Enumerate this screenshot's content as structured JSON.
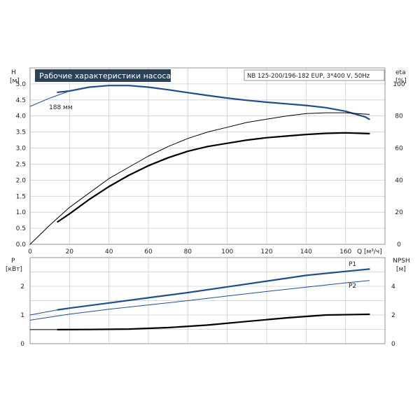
{
  "chart_data": {
    "type": "line",
    "title": "Рабочие характеристики насоса",
    "subtitle": "NB 125-200/196-182 EUP, 3*400 V, 50Hz",
    "x_label": "Q [м³/ч]",
    "x_ticks": [
      "0",
      "20",
      "40",
      "60",
      "80",
      "100",
      "120",
      "140",
      "160"
    ],
    "x_range": [
      0,
      180
    ],
    "colors": {
      "blue": "#1f4e8c",
      "black": "#000000",
      "grid": "#cfcfcf"
    },
    "top_panel": {
      "left_axis": {
        "label_line1": "H",
        "label_line2": "[м]",
        "range": [
          0,
          5.5
        ],
        "ticks": [
          "0.0",
          "0.5",
          "1.0",
          "1.5",
          "2.0",
          "2.5",
          "3.0",
          "3.5",
          "4.0",
          "4.5",
          "5.0"
        ]
      },
      "right_axis": {
        "label_line1": "eta",
        "label_line2": "[%]",
        "range": [
          0,
          110
        ],
        "ticks": [
          "0",
          "20",
          "40",
          "60",
          "80",
          "100"
        ]
      },
      "series": [
        {
          "name": "188 мм",
          "axis": "left",
          "color": "#1f4e8c",
          "width": 1,
          "dashed": false,
          "x": [
            0,
            10,
            20,
            30,
            40,
            50,
            60,
            70,
            80,
            90,
            100,
            110,
            120,
            130,
            140,
            150,
            160,
            170,
            172
          ],
          "y": [
            4.3,
            4.56,
            4.78,
            4.9,
            4.95,
            4.95,
            4.9,
            4.82,
            4.73,
            4.64,
            4.56,
            4.49,
            4.43,
            4.38,
            4.33,
            4.26,
            4.15,
            3.97,
            3.9
          ]
        },
        {
          "name": "",
          "axis": "left",
          "color": "#1f4e8c",
          "width": 2.2,
          "dashed": false,
          "x": [
            14,
            20,
            30,
            40,
            50,
            60,
            70,
            80,
            90,
            100,
            110,
            120,
            130,
            140,
            150,
            160,
            170,
            172
          ],
          "y": [
            4.74,
            4.78,
            4.9,
            4.95,
            4.95,
            4.9,
            4.82,
            4.73,
            4.64,
            4.56,
            4.49,
            4.43,
            4.38,
            4.33,
            4.26,
            4.15,
            3.97,
            3.9
          ]
        },
        {
          "name": "",
          "axis": "right",
          "color": "#000000",
          "width": 1,
          "dashed": false,
          "x": [
            0,
            10,
            20,
            30,
            40,
            50,
            60,
            70,
            80,
            90,
            100,
            110,
            120,
            130,
            140,
            150,
            160,
            172
          ],
          "y": [
            0,
            12,
            23,
            32,
            41,
            48,
            55,
            61,
            66,
            70,
            73,
            76,
            78,
            80,
            81.5,
            82,
            82,
            81
          ]
        },
        {
          "name": "",
          "axis": "right",
          "color": "#000000",
          "width": 2.2,
          "dashed": false,
          "x": [
            14,
            20,
            30,
            40,
            50,
            60,
            70,
            80,
            90,
            100,
            110,
            120,
            130,
            140,
            150,
            160,
            172
          ],
          "y": [
            14,
            19,
            28,
            36,
            43,
            49,
            54,
            58,
            61,
            63,
            65,
            66.5,
            67.5,
            68.5,
            69.2,
            69.5,
            69
          ]
        }
      ]
    },
    "bottom_panel": {
      "left_axis": {
        "label_line1": "P",
        "label_line2": "[кВт]",
        "range": [
          0,
          3
        ],
        "ticks": [
          "0",
          "1",
          "2"
        ]
      },
      "right_axis": {
        "label_line1": "NPSH",
        "label_line2": "[м]",
        "range": [
          0,
          6
        ],
        "ticks": [
          "0",
          "2",
          "4"
        ]
      },
      "series": [
        {
          "name": "P1",
          "axis": "left",
          "color": "#1f4e8c",
          "width": 1,
          "dashed": false,
          "x": [
            0,
            14,
            20,
            40,
            60,
            80,
            100,
            120,
            140,
            160,
            172
          ],
          "y": [
            1.0,
            1.18,
            1.24,
            1.42,
            1.6,
            1.78,
            1.98,
            2.18,
            2.38,
            2.52,
            2.6
          ]
        },
        {
          "name": "",
          "axis": "left",
          "color": "#1f4e8c",
          "width": 2.2,
          "dashed": false,
          "x": [
            14,
            20,
            40,
            60,
            80,
            100,
            120,
            140,
            160,
            172
          ],
          "y": [
            1.18,
            1.24,
            1.42,
            1.6,
            1.78,
            1.98,
            2.18,
            2.38,
            2.52,
            2.6
          ]
        },
        {
          "name": "P2",
          "axis": "left",
          "color": "#1f4e8c",
          "width": 1,
          "dashed": false,
          "x": [
            0,
            20,
            40,
            60,
            80,
            100,
            120,
            140,
            160,
            172
          ],
          "y": [
            0.82,
            1.03,
            1.2,
            1.35,
            1.5,
            1.66,
            1.82,
            1.97,
            2.12,
            2.2
          ]
        },
        {
          "name": "",
          "axis": "right",
          "color": "#000000",
          "width": 1,
          "dashed": false,
          "x": [
            0,
            14
          ],
          "y": [
            0.98,
            0.98
          ]
        },
        {
          "name": "",
          "axis": "right",
          "color": "#000000",
          "width": 2.2,
          "dashed": false,
          "x": [
            14,
            30,
            50,
            70,
            90,
            110,
            130,
            150,
            172
          ],
          "y": [
            0.98,
            0.99,
            1.02,
            1.12,
            1.3,
            1.55,
            1.8,
            2.0,
            2.05
          ]
        }
      ]
    }
  }
}
